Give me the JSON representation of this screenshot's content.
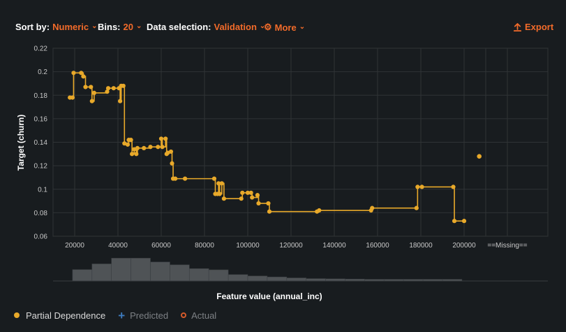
{
  "toolbar": {
    "sort_label": "Sort by:",
    "sort_value": "Numeric",
    "bins_label": "Bins:",
    "bins_value": "20",
    "data_label": "Data selection:",
    "data_value": "Validation",
    "more_label": "More",
    "export_label": "Export"
  },
  "legend": {
    "partial_dependence": "Partial Dependence",
    "predicted": "Predicted",
    "actual": "Actual"
  },
  "colors": {
    "accent": "#f26b2a",
    "series": "#e8a92a",
    "histogram": "#4f5356",
    "predicted": "#3d7bbd",
    "actual": "#d45a2a"
  },
  "chart_data": {
    "type": "line",
    "xlabel": "Feature value (annual_inc)",
    "ylabel": "Target (churn)",
    "xlim": [
      10000,
      210000
    ],
    "ylim": [
      0.06,
      0.22
    ],
    "xticks": [
      20000,
      40000,
      60000,
      80000,
      100000,
      120000,
      140000,
      160000,
      180000,
      200000
    ],
    "xtick_labels": [
      "20000",
      "40000",
      "60000",
      "80000",
      "100000",
      "120000",
      "140000",
      "160000",
      "180000",
      "200000"
    ],
    "yticks": [
      0.06,
      0.08,
      0.1,
      0.12,
      0.14,
      0.16,
      0.18,
      0.2,
      0.22
    ],
    "ytick_labels": [
      "0.06",
      "0.08",
      "0.1",
      "0.12",
      "0.14",
      "0.16",
      "0.18",
      "0.2",
      "0.22"
    ],
    "missing_label": "==Missing==",
    "missing_value": 0.128,
    "grid": true,
    "series": [
      {
        "name": "Partial Dependence",
        "step": true,
        "points": [
          [
            17800,
            0.178
          ],
          [
            19000,
            0.178
          ],
          [
            19500,
            0.199
          ],
          [
            23000,
            0.199
          ],
          [
            24000,
            0.196
          ],
          [
            25000,
            0.187
          ],
          [
            27500,
            0.187
          ],
          [
            28000,
            0.175
          ],
          [
            29000,
            0.182
          ],
          [
            35000,
            0.183
          ],
          [
            35500,
            0.186
          ],
          [
            38000,
            0.186
          ],
          [
            40500,
            0.186
          ],
          [
            41000,
            0.175
          ],
          [
            41500,
            0.188
          ],
          [
            42500,
            0.188
          ],
          [
            43000,
            0.139
          ],
          [
            44500,
            0.138
          ],
          [
            45000,
            0.142
          ],
          [
            46000,
            0.142
          ],
          [
            46500,
            0.13
          ],
          [
            47500,
            0.134
          ],
          [
            48500,
            0.13
          ],
          [
            49000,
            0.135
          ],
          [
            52000,
            0.135
          ],
          [
            55000,
            0.136
          ],
          [
            58500,
            0.136
          ],
          [
            60000,
            0.143
          ],
          [
            60500,
            0.136
          ],
          [
            62000,
            0.143
          ],
          [
            62500,
            0.13
          ],
          [
            63000,
            0.131
          ],
          [
            64500,
            0.132
          ],
          [
            65000,
            0.122
          ],
          [
            65500,
            0.109
          ],
          [
            66500,
            0.109
          ],
          [
            71000,
            0.109
          ],
          [
            84500,
            0.109
          ],
          [
            85000,
            0.096
          ],
          [
            86000,
            0.096
          ],
          [
            86500,
            0.105
          ],
          [
            87000,
            0.096
          ],
          [
            88000,
            0.105
          ],
          [
            89000,
            0.092
          ],
          [
            97000,
            0.092
          ],
          [
            97500,
            0.097
          ],
          [
            100000,
            0.097
          ],
          [
            101500,
            0.097
          ],
          [
            102000,
            0.093
          ],
          [
            104500,
            0.095
          ],
          [
            105000,
            0.088
          ],
          [
            109500,
            0.088
          ],
          [
            110000,
            0.081
          ],
          [
            132000,
            0.081
          ],
          [
            133000,
            0.082
          ],
          [
            157000,
            0.082
          ],
          [
            157500,
            0.084
          ],
          [
            178000,
            0.084
          ],
          [
            178500,
            0.102
          ],
          [
            180500,
            0.102
          ],
          [
            195000,
            0.102
          ],
          [
            195500,
            0.073
          ],
          [
            200000,
            0.073
          ]
        ]
      }
    ],
    "histogram": {
      "bin_width": 9000,
      "bin_starts": [
        19000,
        28000,
        37000,
        46000,
        55000,
        64000,
        73000,
        82000,
        91000,
        100000,
        109000,
        118000,
        127000,
        136000,
        145000,
        154000,
        163000,
        172000,
        181000,
        190000
      ],
      "relative_counts": [
        0.48,
        0.72,
        0.96,
        0.96,
        0.8,
        0.68,
        0.52,
        0.47,
        0.27,
        0.21,
        0.17,
        0.13,
        0.1,
        0.09,
        0.08,
        0.07,
        0.07,
        0.07,
        0.07,
        0.07
      ]
    }
  }
}
